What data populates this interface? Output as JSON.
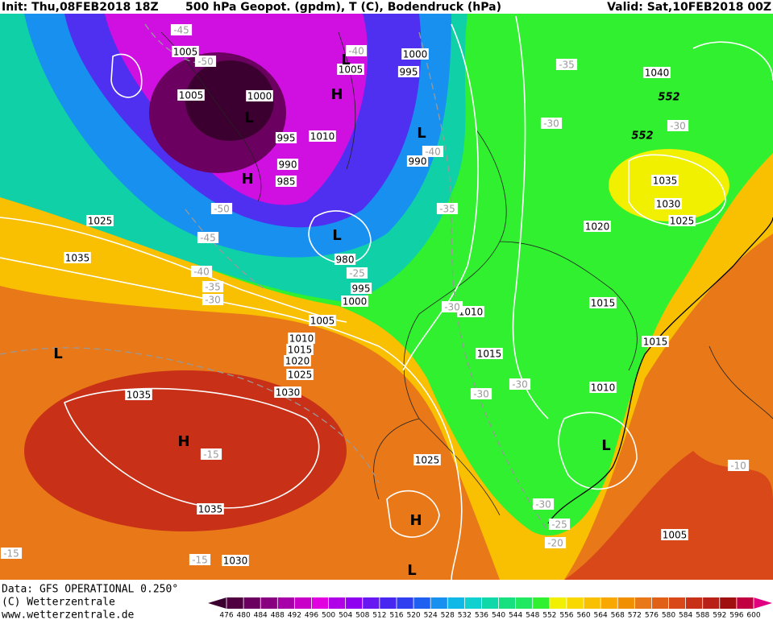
{
  "header": {
    "init": "Init: Thu,08FEB2018 18Z",
    "title": "500 hPa Geopot. (gpdm), T (C), Bodendruck (hPa)",
    "valid": "Valid: Sat,10FEB2018 00Z"
  },
  "footer": {
    "data": "Data: GFS OPERATIONAL 0.250°",
    "copyright": "(C) Wetterzentrale",
    "url": "www.wetterzentrale.de"
  },
  "colorbar": {
    "labels": [
      476,
      480,
      484,
      488,
      492,
      496,
      500,
      504,
      508,
      512,
      516,
      520,
      524,
      528,
      532,
      536,
      540,
      544,
      548,
      552,
      556,
      560,
      564,
      568,
      572,
      576,
      580,
      584,
      588,
      592,
      596,
      600
    ],
    "colors": [
      "#3c0030",
      "#500040",
      "#6c0060",
      "#880080",
      "#a800a8",
      "#c800c8",
      "#e000e0",
      "#b000e8",
      "#9000f0",
      "#6818f0",
      "#4828f0",
      "#3040f0",
      "#2060f0",
      "#1890f0",
      "#10b8e8",
      "#10d0d0",
      "#10d8a8",
      "#18e080",
      "#20e860",
      "#30f030",
      "#f0f000",
      "#f8d800",
      "#f8c000",
      "#f8a800",
      "#f09000",
      "#e87818",
      "#e06018",
      "#d84818",
      "#c83018",
      "#b82018",
      "#a01010",
      "#c00040",
      "#e00080"
    ]
  },
  "isobar_labels": [
    1005,
    1005,
    1000,
    1000,
    995,
    1005,
    995,
    1010,
    990,
    985,
    990,
    980,
    995,
    1000,
    1005,
    1010,
    1015,
    1020,
    1025,
    1025,
    1035,
    1035,
    1030,
    1035,
    1030,
    1025,
    1010,
    1015,
    1020,
    1015,
    1015,
    1010,
    1005,
    1040,
    1035,
    1030,
    1025
  ],
  "temperature_labels": [
    -45,
    -50,
    -40,
    -40,
    -35,
    -30,
    -30,
    -35,
    -50,
    -45,
    -40,
    -35,
    -30,
    -25,
    -30,
    -30,
    -30,
    -15,
    -30,
    -25,
    -20,
    -15,
    -15,
    -10
  ],
  "height_labels": [
    552,
    552
  ],
  "centers": [
    "L",
    "H",
    "L",
    "H",
    "L",
    "L",
    "L",
    "H",
    "L",
    "H",
    "L"
  ]
}
